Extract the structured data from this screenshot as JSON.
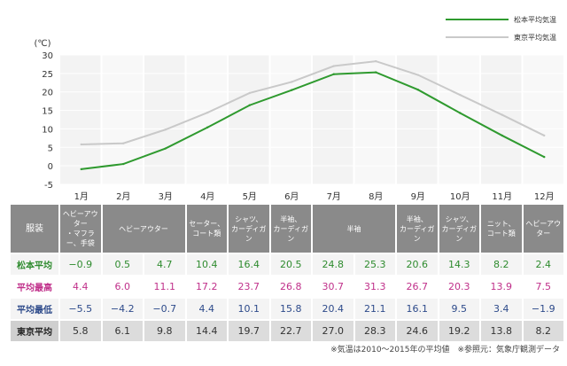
{
  "chart_data": {
    "type": "line",
    "categories": [
      "1月",
      "2月",
      "3月",
      "4月",
      "5月",
      "6月",
      "7月",
      "8月",
      "9月",
      "10月",
      "11月",
      "12月"
    ],
    "unit": "(℃)",
    "ylim": [
      -5,
      30
    ],
    "yticks": [
      "-5",
      "0",
      "5",
      "10",
      "15",
      "20",
      "25",
      "30"
    ],
    "ytick_values": [
      -5,
      0,
      5,
      10,
      15,
      20,
      25,
      30
    ],
    "series": [
      {
        "name": "松本平均気温",
        "color": "#2f9a2f",
        "values": [
          -0.9,
          0.5,
          4.7,
          10.4,
          16.4,
          20.5,
          24.8,
          25.3,
          20.6,
          14.3,
          8.2,
          2.4
        ]
      },
      {
        "name": "東京平均気温",
        "color": "#c9c9c9",
        "values": [
          5.8,
          6.1,
          9.8,
          14.4,
          19.7,
          22.7,
          27.0,
          28.3,
          24.6,
          19.2,
          13.8,
          8.2
        ]
      }
    ],
    "grid": true,
    "legend_position": "top-right"
  },
  "table": {
    "clothing_header": "服装",
    "clothing": [
      {
        "text": "ヘビーアウター\n・マフラー、手袋",
        "span": 1
      },
      {
        "text": "ヘビーアウター",
        "span": 2
      },
      {
        "text": "セーター、\nコート類",
        "span": 1
      },
      {
        "text": "シャツ、\nカーディガン",
        "span": 1
      },
      {
        "text": "半袖、\nカーディガン",
        "span": 1
      },
      {
        "text": "半袖",
        "span": 2
      },
      {
        "text": "半袖、\nカーディガン",
        "span": 1
      },
      {
        "text": "シャツ、\nカーディガン",
        "span": 1
      },
      {
        "text": "ニット、\nコート類",
        "span": 1
      },
      {
        "text": "ヘビーアウター",
        "span": 1
      }
    ],
    "rows": [
      {
        "key": "matsumoto",
        "label": "松本平均",
        "values": [
          "−0.9",
          "0.5",
          "4.7",
          "10.4",
          "16.4",
          "20.5",
          "24.8",
          "25.3",
          "20.6",
          "14.3",
          "8.2",
          "2.4"
        ]
      },
      {
        "key": "max",
        "label": "平均最高",
        "values": [
          "4.4",
          "6.0",
          "11.1",
          "17.2",
          "23.7",
          "26.8",
          "30.7",
          "31.3",
          "26.7",
          "20.3",
          "13.9",
          "7.5"
        ]
      },
      {
        "key": "min",
        "label": "平均最低",
        "values": [
          "−5.5",
          "−4.2",
          "−0.7",
          "4.4",
          "10.1",
          "15.8",
          "20.4",
          "21.1",
          "16.1",
          "9.5",
          "3.4",
          "−1.9"
        ]
      },
      {
        "key": "tokyo",
        "label": "東京平均",
        "values": [
          "5.8",
          "6.1",
          "9.8",
          "14.4",
          "19.7",
          "22.7",
          "27.0",
          "28.3",
          "24.6",
          "19.2",
          "13.8",
          "8.2"
        ]
      }
    ]
  },
  "note": "※気温は2010〜2015年の平均値　※参照元：気象庁観測データ"
}
